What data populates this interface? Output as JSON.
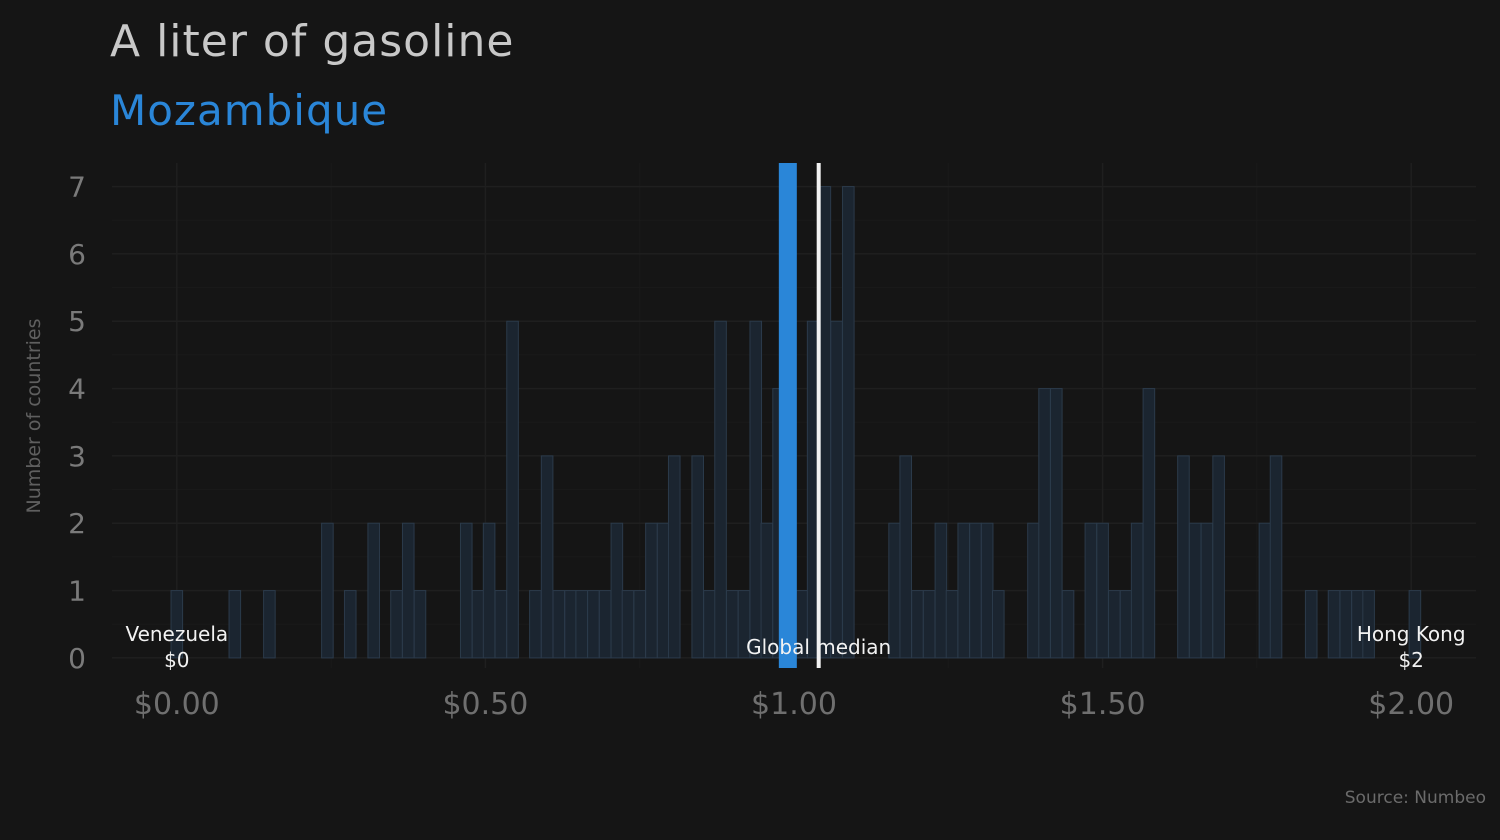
{
  "title": "A liter of gasoline",
  "subtitle": "Mozambique",
  "source": "Source: Numbeo",
  "colors": {
    "background": "#151515",
    "highlight": "#2a86d8",
    "median": "#f2f2f2",
    "bar_fill": "#1b2530",
    "bar_stroke": "#2b3a4a",
    "grid": "#1f1f1f"
  },
  "chart_data": {
    "type": "bar",
    "title": "A liter of gasoline",
    "subtitle": "Mozambique",
    "xlabel": "",
    "ylabel": "Number of countries",
    "xlim": [
      -0.105,
      2.105
    ],
    "ylim": [
      -0.15,
      7.35
    ],
    "bin_width": 0.01875,
    "x_ticks": [
      0,
      0.5,
      1.0,
      1.5,
      2.0
    ],
    "x_tick_labels": [
      "$0.00",
      "$0.50",
      "$1.00",
      "$1.50",
      "$2.00"
    ],
    "y_ticks": [
      0,
      1,
      2,
      3,
      4,
      5,
      6,
      7
    ],
    "y_tick_labels": [
      "0",
      "1",
      "2",
      "3",
      "4",
      "5",
      "6",
      "7"
    ],
    "grid": true,
    "bins": [
      {
        "x": 0.0,
        "count": 1
      },
      {
        "x": 0.094,
        "count": 1
      },
      {
        "x": 0.15,
        "count": 1
      },
      {
        "x": 0.244,
        "count": 2
      },
      {
        "x": 0.281,
        "count": 1
      },
      {
        "x": 0.319,
        "count": 2
      },
      {
        "x": 0.356,
        "count": 1
      },
      {
        "x": 0.375,
        "count": 2
      },
      {
        "x": 0.394,
        "count": 1
      },
      {
        "x": 0.469,
        "count": 2
      },
      {
        "x": 0.488,
        "count": 1
      },
      {
        "x": 0.506,
        "count": 2
      },
      {
        "x": 0.525,
        "count": 1
      },
      {
        "x": 0.544,
        "count": 5
      },
      {
        "x": 0.581,
        "count": 1
      },
      {
        "x": 0.6,
        "count": 3
      },
      {
        "x": 0.619,
        "count": 1
      },
      {
        "x": 0.638,
        "count": 1
      },
      {
        "x": 0.656,
        "count": 1
      },
      {
        "x": 0.675,
        "count": 1
      },
      {
        "x": 0.694,
        "count": 1
      },
      {
        "x": 0.713,
        "count": 2
      },
      {
        "x": 0.731,
        "count": 1
      },
      {
        "x": 0.75,
        "count": 1
      },
      {
        "x": 0.769,
        "count": 2
      },
      {
        "x": 0.788,
        "count": 2
      },
      {
        "x": 0.806,
        "count": 3
      },
      {
        "x": 0.844,
        "count": 3
      },
      {
        "x": 0.863,
        "count": 1
      },
      {
        "x": 0.881,
        "count": 5
      },
      {
        "x": 0.9,
        "count": 1
      },
      {
        "x": 0.919,
        "count": 1
      },
      {
        "x": 0.938,
        "count": 5
      },
      {
        "x": 0.956,
        "count": 2
      },
      {
        "x": 0.975,
        "count": 4
      },
      {
        "x": 0.994,
        "count": 4
      },
      {
        "x": 1.013,
        "count": 1
      },
      {
        "x": 1.031,
        "count": 5
      },
      {
        "x": 1.05,
        "count": 7
      },
      {
        "x": 1.069,
        "count": 5
      },
      {
        "x": 1.088,
        "count": 7
      },
      {
        "x": 1.163,
        "count": 2
      },
      {
        "x": 1.181,
        "count": 3
      },
      {
        "x": 1.2,
        "count": 1
      },
      {
        "x": 1.219,
        "count": 1
      },
      {
        "x": 1.238,
        "count": 2
      },
      {
        "x": 1.256,
        "count": 1
      },
      {
        "x": 1.275,
        "count": 2
      },
      {
        "x": 1.294,
        "count": 2
      },
      {
        "x": 1.313,
        "count": 2
      },
      {
        "x": 1.331,
        "count": 1
      },
      {
        "x": 1.388,
        "count": 2
      },
      {
        "x": 1.406,
        "count": 4
      },
      {
        "x": 1.425,
        "count": 4
      },
      {
        "x": 1.444,
        "count": 1
      },
      {
        "x": 1.481,
        "count": 2
      },
      {
        "x": 1.5,
        "count": 2
      },
      {
        "x": 1.519,
        "count": 1
      },
      {
        "x": 1.538,
        "count": 1
      },
      {
        "x": 1.556,
        "count": 2
      },
      {
        "x": 1.575,
        "count": 4
      },
      {
        "x": 1.631,
        "count": 3
      },
      {
        "x": 1.65,
        "count": 2
      },
      {
        "x": 1.669,
        "count": 2
      },
      {
        "x": 1.688,
        "count": 3
      },
      {
        "x": 1.763,
        "count": 2
      },
      {
        "x": 1.781,
        "count": 3
      },
      {
        "x": 1.838,
        "count": 1
      },
      {
        "x": 1.875,
        "count": 1
      },
      {
        "x": 1.894,
        "count": 1
      },
      {
        "x": 1.913,
        "count": 1
      },
      {
        "x": 1.931,
        "count": 1
      },
      {
        "x": 2.006,
        "count": 1
      }
    ],
    "highlight": {
      "name": "Mozambique",
      "x": 0.99
    },
    "median": {
      "label": "Global median",
      "x": 1.04
    },
    "annotations": [
      {
        "name": "Venezuela",
        "value": "$0",
        "x": 0.0
      },
      {
        "name": "Hong Kong",
        "value": "$2",
        "x": 2.0
      }
    ]
  }
}
